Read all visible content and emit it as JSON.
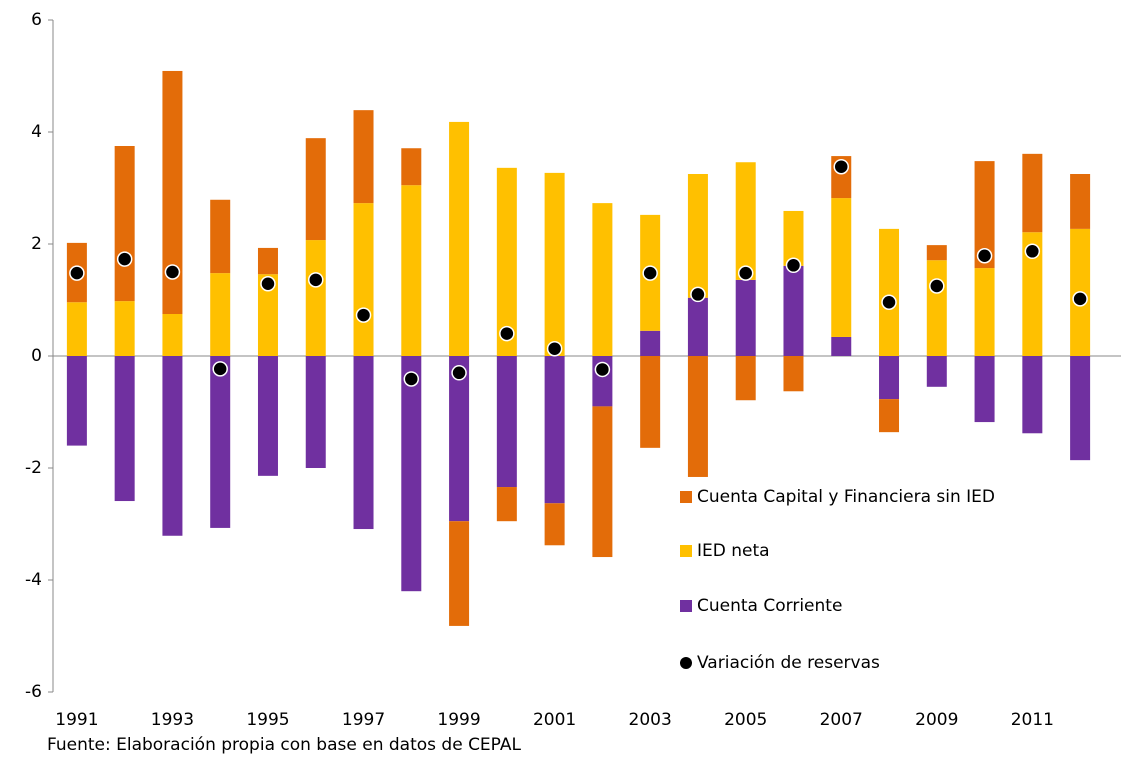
{
  "chart_data": {
    "type": "bar",
    "stacked": true,
    "categories": [
      "1991",
      null,
      "1993",
      null,
      "1995",
      null,
      "1997",
      null,
      "1999",
      null,
      "2001",
      null,
      "2003",
      null,
      "2005",
      null,
      "2007",
      null,
      "2009",
      null,
      "2011",
      null
    ],
    "series": [
      {
        "name": "Cuenta Capital y Financiera sin IED",
        "color": "#E36C09",
        "values": [
          1.06,
          2.77,
          4.34,
          1.31,
          0.47,
          1.82,
          1.66,
          0.66,
          -1.87,
          -0.61,
          -0.75,
          -2.69,
          -1.64,
          -2.16,
          -0.79,
          -0.63,
          0.75,
          -0.59,
          0.27,
          1.91,
          1.4,
          0.98
        ]
      },
      {
        "name": "IED neta",
        "color": "#FFC000",
        "values": [
          0.96,
          0.98,
          0.75,
          1.48,
          1.46,
          2.07,
          2.73,
          3.05,
          4.18,
          3.36,
          3.27,
          2.73,
          2.07,
          2.21,
          2.1,
          0.98,
          2.48,
          2.27,
          1.71,
          1.57,
          2.21,
          2.27
        ]
      },
      {
        "name": "Cuenta Corriente",
        "color": "#7030A0",
        "values": [
          -1.6,
          -2.59,
          -3.21,
          -3.07,
          -2.14,
          -2.0,
          -3.09,
          -4.2,
          -2.95,
          -2.34,
          -2.63,
          -0.9,
          0.45,
          1.04,
          1.36,
          1.61,
          0.34,
          -0.77,
          -0.55,
          -1.18,
          -1.38,
          -1.86
        ]
      },
      {
        "name": "Variación de reservas",
        "type": "scatter",
        "color": "#000000",
        "values": [
          1.48,
          1.73,
          1.5,
          -0.23,
          1.29,
          1.36,
          0.73,
          -0.41,
          -0.3,
          0.4,
          0.13,
          -0.24,
          1.48,
          1.1,
          1.48,
          1.62,
          3.38,
          0.96,
          1.25,
          1.79,
          1.87,
          1.02
        ]
      }
    ],
    "ylim": [
      -6,
      6
    ],
    "yticks": [
      -6,
      -4,
      -2,
      0,
      2,
      4,
      6
    ],
    "source": "Fuente: Elaboración propia con base en datos de CEPAL"
  }
}
